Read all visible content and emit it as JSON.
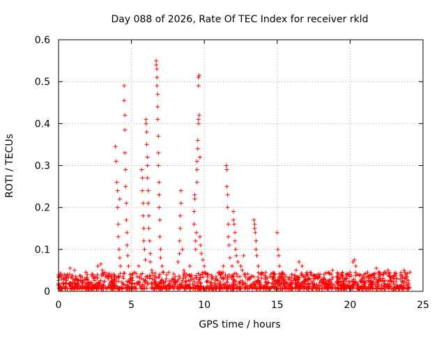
{
  "chart_data": {
    "type": "scatter",
    "title": "Day 088 of 2026, Rate Of TEC Index for receiver rkld",
    "xlabel": "GPS time / hours",
    "ylabel": "ROTI / TECUs",
    "xlim": [
      0,
      25
    ],
    "ylim": [
      0,
      0.6
    ],
    "xticks": [
      "0",
      "5",
      "10",
      "15",
      "20",
      "25"
    ],
    "yticks": [
      "0",
      "0.1",
      "0.2",
      "0.3",
      "0.4",
      "0.5",
      "0.6"
    ],
    "grid": true,
    "marker": "plus",
    "color": "#ff0000",
    "series": [
      {
        "points": [
          [
            0.0,
            0.015
          ],
          [
            0.0,
            0.035
          ],
          [
            0.1,
            0.012
          ],
          [
            0.3,
            0.018
          ],
          [
            0.5,
            0.02
          ],
          [
            0.6,
            0.04
          ],
          [
            0.8,
            0.055
          ],
          [
            1.0,
            0.03
          ],
          [
            1.1,
            0.05
          ],
          [
            1.3,
            0.02
          ],
          [
            1.5,
            0.035
          ],
          [
            1.7,
            0.025
          ],
          [
            1.9,
            0.03
          ],
          [
            2.1,
            0.02
          ],
          [
            2.3,
            0.04
          ],
          [
            2.5,
            0.035
          ],
          [
            2.7,
            0.06
          ],
          [
            2.9,
            0.065
          ],
          [
            3.0,
            0.05
          ],
          [
            3.2,
            0.045
          ],
          [
            3.4,
            0.03
          ],
          [
            3.6,
            0.035
          ],
          [
            3.8,
            0.04
          ],
          [
            3.9,
            0.345
          ],
          [
            3.95,
            0.31
          ],
          [
            4.0,
            0.26
          ],
          [
            4.05,
            0.24
          ],
          [
            4.05,
            0.2
          ],
          [
            4.1,
            0.16
          ],
          [
            4.1,
            0.13
          ],
          [
            4.15,
            0.1
          ],
          [
            4.2,
            0.22
          ],
          [
            4.2,
            0.08
          ],
          [
            4.25,
            0.06
          ],
          [
            4.5,
            0.49
          ],
          [
            4.5,
            0.455
          ],
          [
            4.55,
            0.42
          ],
          [
            4.55,
            0.385
          ],
          [
            4.55,
            0.33
          ],
          [
            4.6,
            0.29
          ],
          [
            4.6,
            0.25
          ],
          [
            4.65,
            0.21
          ],
          [
            4.65,
            0.17
          ],
          [
            4.7,
            0.14
          ],
          [
            4.7,
            0.11
          ],
          [
            4.75,
            0.085
          ],
          [
            4.8,
            0.06
          ],
          [
            4.9,
            0.04
          ],
          [
            5.0,
            0.03
          ],
          [
            5.2,
            0.045
          ],
          [
            5.4,
            0.035
          ],
          [
            5.5,
            0.06
          ],
          [
            5.7,
            0.29
          ],
          [
            5.75,
            0.27
          ],
          [
            5.75,
            0.24
          ],
          [
            5.8,
            0.21
          ],
          [
            5.8,
            0.18
          ],
          [
            5.85,
            0.15
          ],
          [
            5.85,
            0.12
          ],
          [
            5.9,
            0.1
          ],
          [
            5.95,
            0.075
          ],
          [
            6.0,
            0.41
          ],
          [
            6.0,
            0.4
          ],
          [
            6.05,
            0.38
          ],
          [
            6.05,
            0.35
          ],
          [
            6.1,
            0.32
          ],
          [
            6.1,
            0.3
          ],
          [
            6.1,
            0.27
          ],
          [
            6.15,
            0.24
          ],
          [
            6.15,
            0.21
          ],
          [
            6.2,
            0.18
          ],
          [
            6.2,
            0.15
          ],
          [
            6.25,
            0.12
          ],
          [
            6.3,
            0.09
          ],
          [
            6.3,
            0.07
          ],
          [
            6.4,
            0.05
          ],
          [
            6.7,
            0.55
          ],
          [
            6.7,
            0.54
          ],
          [
            6.75,
            0.53
          ],
          [
            6.75,
            0.51
          ],
          [
            6.75,
            0.49
          ],
          [
            6.8,
            0.47
          ],
          [
            6.8,
            0.44
          ],
          [
            6.8,
            0.41
          ],
          [
            6.85,
            0.37
          ],
          [
            6.85,
            0.33
          ],
          [
            6.85,
            0.3
          ],
          [
            6.9,
            0.26
          ],
          [
            6.9,
            0.23
          ],
          [
            6.9,
            0.2
          ],
          [
            6.95,
            0.17
          ],
          [
            6.95,
            0.13
          ],
          [
            7.0,
            0.1
          ],
          [
            7.0,
            0.08
          ],
          [
            7.1,
            0.06
          ],
          [
            7.2,
            0.045
          ],
          [
            7.4,
            0.03
          ],
          [
            7.6,
            0.025
          ],
          [
            7.8,
            0.03
          ],
          [
            8.0,
            0.035
          ],
          [
            8.2,
            0.07
          ],
          [
            8.3,
            0.09
          ],
          [
            8.3,
            0.12
          ],
          [
            8.35,
            0.15
          ],
          [
            8.35,
            0.18
          ],
          [
            8.4,
            0.21
          ],
          [
            8.4,
            0.24
          ],
          [
            8.5,
            0.1
          ],
          [
            8.6,
            0.05
          ],
          [
            8.8,
            0.04
          ],
          [
            9.0,
            0.06
          ],
          [
            9.3,
            0.16
          ],
          [
            9.3,
            0.19
          ],
          [
            9.35,
            0.22
          ],
          [
            9.35,
            0.23
          ],
          [
            9.4,
            0.1
          ],
          [
            9.4,
            0.12
          ],
          [
            9.45,
            0.14
          ],
          [
            9.5,
            0.26
          ],
          [
            9.5,
            0.29
          ],
          [
            9.5,
            0.31
          ],
          [
            9.55,
            0.34
          ],
          [
            9.55,
            0.36
          ],
          [
            9.6,
            0.4
          ],
          [
            9.6,
            0.41
          ],
          [
            9.6,
            0.49
          ],
          [
            9.6,
            0.51
          ],
          [
            9.65,
            0.515
          ],
          [
            9.65,
            0.42
          ],
          [
            9.7,
            0.32
          ],
          [
            9.7,
            0.13
          ],
          [
            9.75,
            0.11
          ],
          [
            9.8,
            0.09
          ],
          [
            9.9,
            0.075
          ],
          [
            10.0,
            0.06
          ],
          [
            10.2,
            0.04
          ],
          [
            10.5,
            0.03
          ],
          [
            10.8,
            0.035
          ],
          [
            11.1,
            0.04
          ],
          [
            11.3,
            0.06
          ],
          [
            11.5,
            0.3
          ],
          [
            11.55,
            0.29
          ],
          [
            11.55,
            0.25
          ],
          [
            11.6,
            0.23
          ],
          [
            11.6,
            0.2
          ],
          [
            11.65,
            0.16
          ],
          [
            11.65,
            0.13
          ],
          [
            11.7,
            0.11
          ],
          [
            11.75,
            0.08
          ],
          [
            11.9,
            0.06
          ],
          [
            12.0,
            0.19
          ],
          [
            12.0,
            0.17
          ],
          [
            12.05,
            0.16
          ],
          [
            12.1,
            0.14
          ],
          [
            12.1,
            0.12
          ],
          [
            12.15,
            0.1
          ],
          [
            12.2,
            0.085
          ],
          [
            12.3,
            0.07
          ],
          [
            12.5,
            0.06
          ],
          [
            12.6,
            0.05
          ],
          [
            12.7,
            0.085
          ],
          [
            13.4,
            0.17
          ],
          [
            13.45,
            0.16
          ],
          [
            13.45,
            0.15
          ],
          [
            13.5,
            0.14
          ],
          [
            13.55,
            0.12
          ],
          [
            13.55,
            0.1
          ],
          [
            13.6,
            0.085
          ],
          [
            13.7,
            0.06
          ],
          [
            13.9,
            0.04
          ],
          [
            14.2,
            0.045
          ],
          [
            14.5,
            0.035
          ],
          [
            14.8,
            0.04
          ],
          [
            15.0,
            0.14
          ],
          [
            15.05,
            0.1
          ],
          [
            15.1,
            0.085
          ],
          [
            15.15,
            0.06
          ],
          [
            15.3,
            0.04
          ],
          [
            15.6,
            0.035
          ],
          [
            16.0,
            0.04
          ],
          [
            16.3,
            0.05
          ],
          [
            16.5,
            0.07
          ],
          [
            16.7,
            0.06
          ],
          [
            17.0,
            0.04
          ],
          [
            17.3,
            0.045
          ],
          [
            17.6,
            0.03
          ],
          [
            17.9,
            0.035
          ],
          [
            18.2,
            0.04
          ],
          [
            18.5,
            0.045
          ],
          [
            18.8,
            0.05
          ],
          [
            19.1,
            0.035
          ],
          [
            19.4,
            0.04
          ],
          [
            19.7,
            0.03
          ],
          [
            20.0,
            0.045
          ],
          [
            20.2,
            0.07
          ],
          [
            20.3,
            0.075
          ],
          [
            20.4,
            0.06
          ],
          [
            20.6,
            0.04
          ],
          [
            20.9,
            0.035
          ],
          [
            21.2,
            0.045
          ],
          [
            21.5,
            0.04
          ],
          [
            21.8,
            0.055
          ],
          [
            22.0,
            0.045
          ],
          [
            22.3,
            0.04
          ],
          [
            22.6,
            0.05
          ],
          [
            22.9,
            0.035
          ],
          [
            23.2,
            0.03
          ],
          [
            23.5,
            0.04
          ],
          [
            23.7,
            0.05
          ],
          [
            23.9,
            0.035
          ],
          [
            24.0,
            0.02
          ]
        ]
      }
    ]
  }
}
